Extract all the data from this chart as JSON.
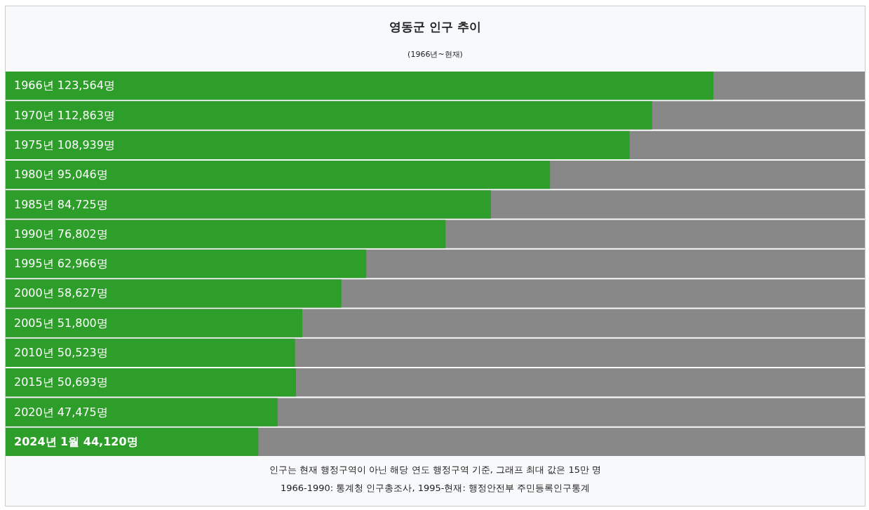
{
  "chart_data": {
    "type": "bar",
    "orientation": "horizontal",
    "title": "영동군 인구 추이",
    "subtitle": "(1966년~현재)",
    "categories": [
      "1966년",
      "1970년",
      "1975년",
      "1980년",
      "1985년",
      "1990년",
      "1995년",
      "2000년",
      "2005년",
      "2010년",
      "2015년",
      "2020년",
      "2024년 1월"
    ],
    "values": [
      123564,
      112863,
      108939,
      95046,
      84725,
      76802,
      62966,
      58627,
      51800,
      50523,
      50693,
      47475,
      44120
    ],
    "value_labels": [
      "123,564명",
      "112,863명",
      "108,939명",
      "95,046명",
      "84,725명",
      "76,802명",
      "62,966명",
      "58,627명",
      "51,800명",
      "50,523명",
      "50,693명",
      "47,475명",
      "44,120명"
    ],
    "color": "#2e9e2a",
    "xlim": [
      0,
      150000
    ],
    "tick_labels": false,
    "legend": false,
    "annotations": [
      "인구는 현재 행정구역이 아닌 해당 연도 행정구역 기준, 그래프 최대 값은 15만 명",
      "1966-1990: 통계청 인구총조사, 1995-현재: 행정안전부 주민등록인구통계"
    ]
  }
}
